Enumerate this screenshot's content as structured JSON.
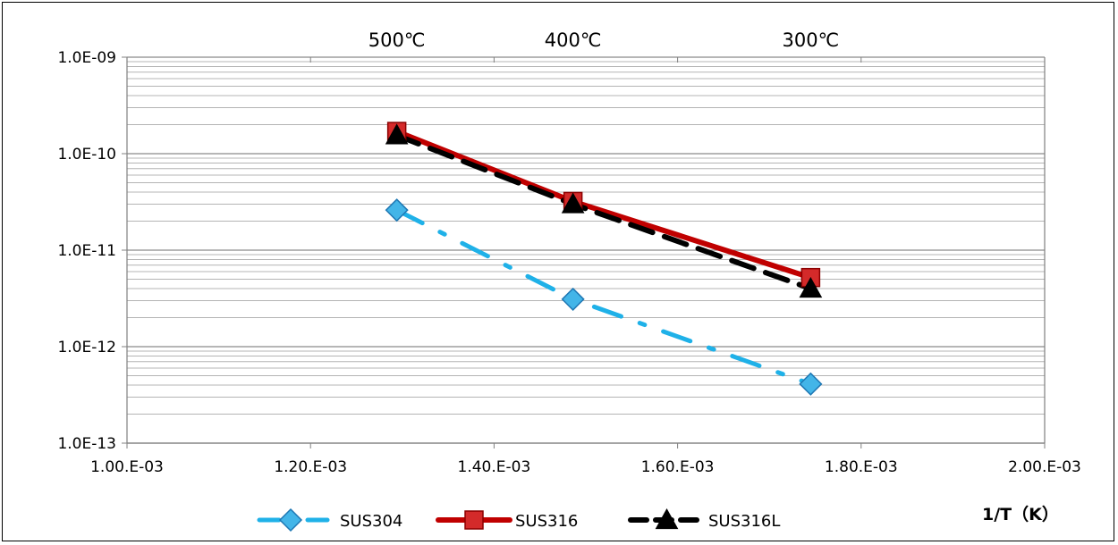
{
  "chart_data": {
    "type": "line",
    "title": "",
    "xlabel": "1/T（K）",
    "ylabel": "",
    "xlim": [
      0.001,
      0.002
    ],
    "ylim": [
      1e-13,
      1e-09
    ],
    "yscale": "log",
    "grid": true,
    "legend_position": "bottom",
    "x_tick_labels": [
      "1.00.E-03",
      "1.20.E-03",
      "1.40.E-03",
      "1.60.E-03",
      "1.80.E-03",
      "2.00.E-03"
    ],
    "y_tick_labels": [
      "1.0E-09",
      "1.0E-10",
      "1.0E-11",
      "1.0E-12",
      "1.0E-13"
    ],
    "top_annotations": [
      {
        "label": "500℃",
        "x": 0.001294
      },
      {
        "label": "400℃",
        "x": 0.001486
      },
      {
        "label": "300℃",
        "x": 0.001745
      }
    ],
    "series": [
      {
        "name": "SUS304",
        "color": "#29ABE2",
        "marker": "diamond",
        "line_style": "dash-dot",
        "x": [
          0.001294,
          0.001486,
          0.001745
        ],
        "y": [
          2.6e-11,
          3.1e-12,
          4.1e-13
        ]
      },
      {
        "name": "SUS316",
        "color": "#C00000",
        "marker": "square",
        "line_style": "solid",
        "x": [
          0.001294,
          0.001486,
          0.001745
        ],
        "y": [
          1.7e-10,
          3.2e-11,
          5.2e-12
        ]
      },
      {
        "name": "SUS316L",
        "color": "#000000",
        "marker": "triangle",
        "line_style": "dashed",
        "x": [
          0.001294,
          0.001486,
          0.001745
        ],
        "y": [
          1.55e-10,
          3e-11,
          4e-12
        ]
      }
    ]
  }
}
